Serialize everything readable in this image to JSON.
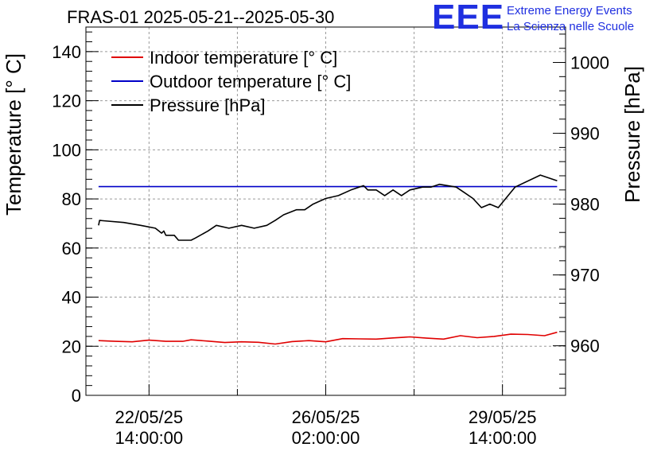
{
  "header": {
    "title": "FRAS-01 2025-05-21--2025-05-30",
    "logo": "EEE",
    "logo_line1": "Extreme Energy Events",
    "logo_line2": "La Scienza nelle Scuole"
  },
  "chart_data": {
    "type": "line",
    "title": "FRAS-01 2025-05-21--2025-05-30",
    "ylabel": "Temperature [° C]",
    "y2label": "Pressure [hPa]",
    "ylim": [
      0,
      150
    ],
    "y2lim": [
      953,
      1005
    ],
    "yticks": [
      0,
      20,
      40,
      60,
      80,
      100,
      120,
      140
    ],
    "y2ticks": [
      960,
      970,
      980,
      990,
      1000
    ],
    "xlim": [
      "2025-05-21 08:00",
      "2025-05-30 20:00"
    ],
    "xticks": [
      {
        "x": "2025-05-22 14:00",
        "date": "22/05/25",
        "time": "14:00:00"
      },
      {
        "x": "2025-05-26 02:00",
        "date": "26/05/25",
        "time": "02:00:00"
      },
      {
        "x": "2025-05-29 14:00",
        "date": "29/05/25",
        "time": "14:00:00"
      }
    ],
    "grid": true,
    "legend_position": "top-left",
    "series": [
      {
        "name": "Indoor temperature [° C]",
        "axis": "left",
        "color": "#e00000",
        "points": [
          [
            "2025-05-21 14:00",
            22.3
          ],
          [
            "2025-05-21 22:00",
            22.0
          ],
          [
            "2025-05-22 06:00",
            21.8
          ],
          [
            "2025-05-22 14:00",
            22.5
          ],
          [
            "2025-05-22 22:00",
            22.0
          ],
          [
            "2025-05-23 06:00",
            22.0
          ],
          [
            "2025-05-23 10:00",
            22.6
          ],
          [
            "2025-05-23 18:00",
            22.1
          ],
          [
            "2025-05-24 02:00",
            21.5
          ],
          [
            "2025-05-24 10:00",
            21.8
          ],
          [
            "2025-05-24 18:00",
            21.6
          ],
          [
            "2025-05-25 02:00",
            20.9
          ],
          [
            "2025-05-25 10:00",
            21.9
          ],
          [
            "2025-05-25 18:00",
            22.3
          ],
          [
            "2025-05-26 02:00",
            21.8
          ],
          [
            "2025-05-26 10:00",
            23.1
          ],
          [
            "2025-05-26 18:00",
            23.0
          ],
          [
            "2025-05-27 02:00",
            22.9
          ],
          [
            "2025-05-27 10:00",
            23.4
          ],
          [
            "2025-05-27 18:00",
            23.8
          ],
          [
            "2025-05-28 02:00",
            23.3
          ],
          [
            "2025-05-28 10:00",
            22.9
          ],
          [
            "2025-05-28 18:00",
            24.3
          ],
          [
            "2025-05-29 02:00",
            23.5
          ],
          [
            "2025-05-29 10:00",
            24.0
          ],
          [
            "2025-05-29 18:00",
            24.9
          ],
          [
            "2025-05-30 02:00",
            24.8
          ],
          [
            "2025-05-30 10:00",
            24.3
          ],
          [
            "2025-05-30 16:00",
            25.7
          ]
        ]
      },
      {
        "name": "Outdoor temperature [° C]",
        "axis": "left",
        "color": "#0000c8",
        "points": [
          [
            "2025-05-21 14:00",
            85.0
          ],
          [
            "2025-05-30 16:00",
            85.0
          ]
        ]
      },
      {
        "name": "Pressure [hPa]",
        "axis": "right",
        "color": "#000000",
        "points": [
          [
            "2025-05-21 14:00",
            977.0
          ],
          [
            "2025-05-21 14:30",
            977.7
          ],
          [
            "2025-05-22 02:00",
            977.4
          ],
          [
            "2025-05-22 10:00",
            977.0
          ],
          [
            "2025-05-22 17:00",
            976.6
          ],
          [
            "2025-05-22 20:00",
            975.9
          ],
          [
            "2025-05-22 21:00",
            976.2
          ],
          [
            "2025-05-22 22:00",
            975.6
          ],
          [
            "2025-05-23 02:00",
            975.6
          ],
          [
            "2025-05-23 04:00",
            974.9
          ],
          [
            "2025-05-23 10:00",
            974.9
          ],
          [
            "2025-05-23 12:00",
            975.2
          ],
          [
            "2025-05-23 18:00",
            976.2
          ],
          [
            "2025-05-23 22:00",
            977.0
          ],
          [
            "2025-05-24 04:00",
            976.6
          ],
          [
            "2025-05-24 10:00",
            977.0
          ],
          [
            "2025-05-24 16:00",
            976.6
          ],
          [
            "2025-05-24 22:00",
            977.0
          ],
          [
            "2025-05-25 02:00",
            977.7
          ],
          [
            "2025-05-25 06:00",
            978.5
          ],
          [
            "2025-05-25 12:00",
            979.2
          ],
          [
            "2025-05-25 16:00",
            979.2
          ],
          [
            "2025-05-25 20:00",
            980.0
          ],
          [
            "2025-05-26 02:00",
            980.8
          ],
          [
            "2025-05-26 08:00",
            981.2
          ],
          [
            "2025-05-26 14:00",
            982.0
          ],
          [
            "2025-05-26 20:00",
            982.6
          ],
          [
            "2025-05-26 22:00",
            982.0
          ],
          [
            "2025-05-27 02:00",
            982.0
          ],
          [
            "2025-05-27 06:00",
            981.2
          ],
          [
            "2025-05-27 10:00",
            982.0
          ],
          [
            "2025-05-27 14:00",
            981.2
          ],
          [
            "2025-05-27 18:00",
            982.0
          ],
          [
            "2025-05-28 00:00",
            982.4
          ],
          [
            "2025-05-28 04:00",
            982.4
          ],
          [
            "2025-05-28 08:00",
            982.8
          ],
          [
            "2025-05-28 16:00",
            982.4
          ],
          [
            "2025-05-28 20:00",
            981.6
          ],
          [
            "2025-05-29 00:00",
            980.8
          ],
          [
            "2025-05-29 04:00",
            979.5
          ],
          [
            "2025-05-29 08:00",
            980.0
          ],
          [
            "2025-05-29 12:00",
            979.5
          ],
          [
            "2025-05-29 20:00",
            982.4
          ],
          [
            "2025-05-30 08:00",
            984.1
          ],
          [
            "2025-05-30 16:00",
            983.3
          ]
        ]
      }
    ]
  }
}
